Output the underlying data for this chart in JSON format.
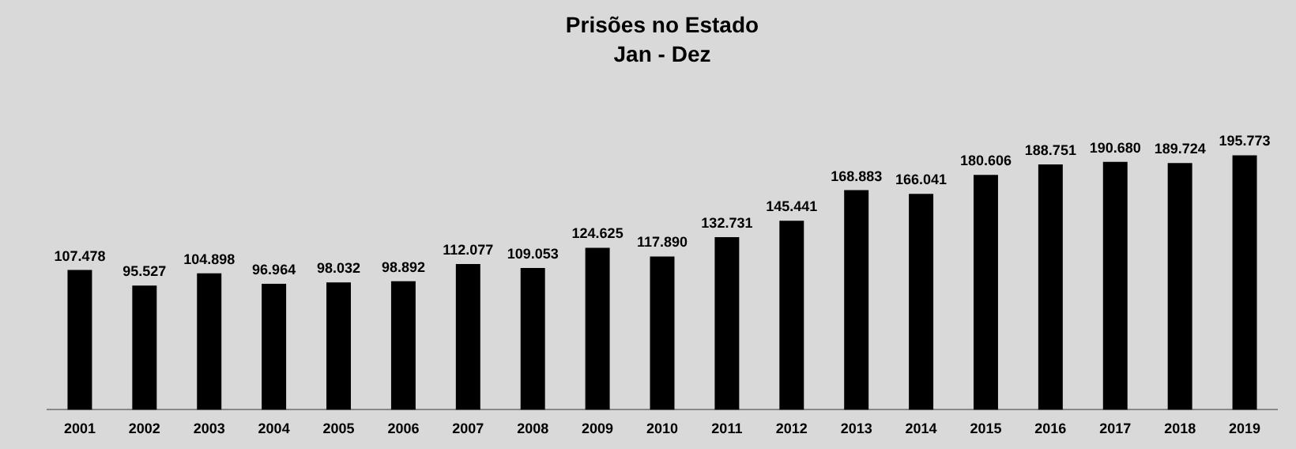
{
  "chart_data": {
    "type": "bar",
    "title": "Prisões no Estado",
    "subtitle": "Jan - Dez",
    "categories": [
      "2001",
      "2002",
      "2003",
      "2004",
      "2005",
      "2006",
      "2007",
      "2008",
      "2009",
      "2010",
      "2011",
      "2012",
      "2013",
      "2014",
      "2015",
      "2016",
      "2017",
      "2018",
      "2019"
    ],
    "values": [
      107478,
      95527,
      104898,
      96964,
      98032,
      98892,
      112077,
      109053,
      124625,
      117890,
      132731,
      145441,
      168883,
      166041,
      180606,
      188751,
      190680,
      189724,
      195773
    ],
    "value_labels": [
      "107.478",
      "95.527",
      "104.898",
      "96.964",
      "98.032",
      "98.892",
      "112.077",
      "109.053",
      "124.625",
      "117.890",
      "132.731",
      "145.441",
      "168.883",
      "166.041",
      "180.606",
      "188.751",
      "190.680",
      "189.724",
      "195.773"
    ],
    "color": "#000000",
    "grid": false,
    "legend": false,
    "tick_labels": "x"
  }
}
